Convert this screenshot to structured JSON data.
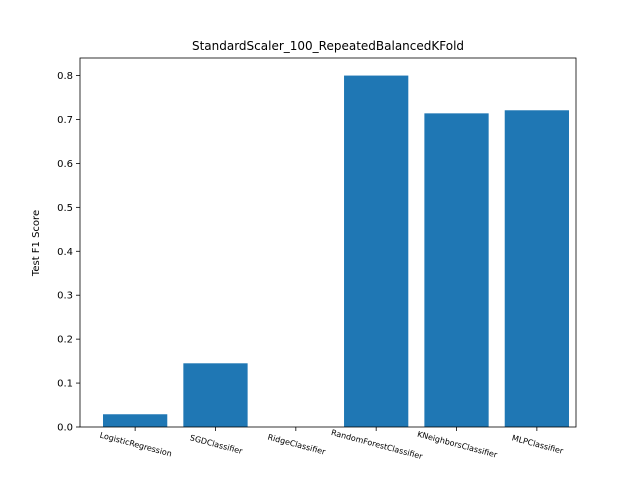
{
  "chart_data": {
    "type": "bar",
    "title": "StandardScaler_100_RepeatedBalancedKFold",
    "xlabel": "",
    "ylabel": "Test F1 Score",
    "categories": [
      "LogisticRegression",
      "SGDClassifier",
      "RidgeClassifier",
      "RandomForestClassifier",
      "KNeighborsClassifier",
      "MLPClassifier"
    ],
    "values": [
      0.029,
      0.145,
      0.0,
      0.8,
      0.714,
      0.721
    ],
    "ylim": [
      0,
      0.84
    ],
    "yticks": [
      "0.0",
      "0.1",
      "0.2",
      "0.3",
      "0.4",
      "0.5",
      "0.6",
      "0.7",
      "0.8"
    ],
    "grid": false,
    "bar_color": "#1f77b4"
  }
}
